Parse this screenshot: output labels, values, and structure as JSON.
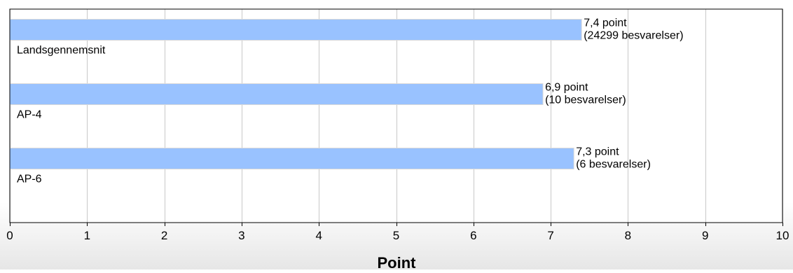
{
  "chart_data": {
    "type": "bar",
    "orientation": "horizontal",
    "categories": [
      "Landsgennemsnit",
      "AP-4",
      "AP-6"
    ],
    "values": [
      7.4,
      6.9,
      7.3
    ],
    "value_labels": [
      "7,4 point",
      "6,9 point",
      "7,3 point"
    ],
    "count_labels": [
      "(24299 besvarelser)",
      "(10 besvarelser)",
      "(6 besvarelser)"
    ],
    "xlabel": "Point",
    "ylabel": "",
    "xlim": [
      0,
      10
    ],
    "xticks": [
      "0",
      "1",
      "2",
      "3",
      "4",
      "5",
      "6",
      "7",
      "8",
      "9",
      "10"
    ],
    "grid": true,
    "bar_color": "#99c2ff"
  }
}
